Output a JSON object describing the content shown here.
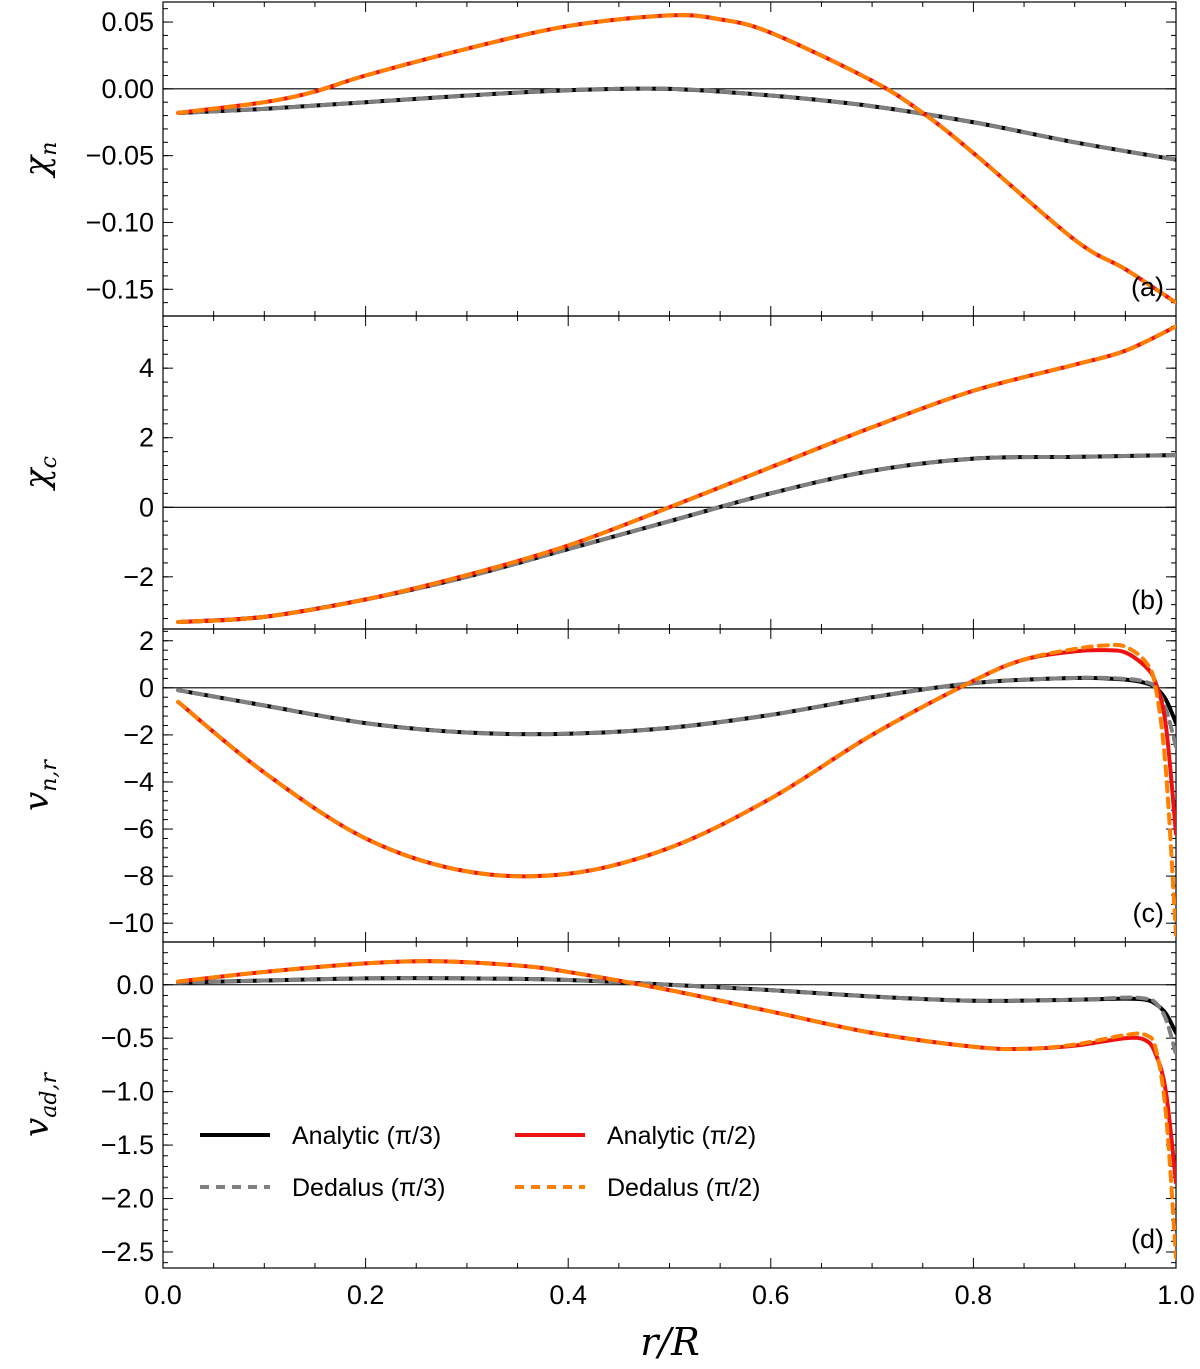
{
  "chart_data": {
    "type": "line",
    "xlabel": "r/R",
    "xlim": [
      0.0,
      1.0
    ],
    "x_ticks": [
      "0.0",
      "0.2",
      "0.4",
      "0.6",
      "0.8",
      "1.0"
    ],
    "series_styles": {
      "analytic_pi3": {
        "name": "Analytic (π/3)",
        "color": "#000000",
        "dashed": false
      },
      "dedalus_pi3": {
        "name": "Dedalus (π/3)",
        "color": "#808080",
        "dashed": true
      },
      "analytic_pi2": {
        "name": "Analytic (π/2)",
        "color": "#ee1111",
        "dashed": false
      },
      "dedalus_pi2": {
        "name": "Dedalus (π/2)",
        "color": "#ff8000",
        "dashed": true
      }
    },
    "legend": {
      "location": "bottom-left of panel (d)",
      "entries": [
        {
          "key": "analytic_pi3",
          "label": "Analytic (π/3)"
        },
        {
          "key": "analytic_pi2",
          "label": "Analytic (π/2)"
        },
        {
          "key": "dedalus_pi3",
          "label": "Dedalus (π/3)"
        },
        {
          "key": "dedalus_pi2",
          "label": "Dedalus (π/2)"
        }
      ]
    },
    "panels": [
      {
        "id": "a",
        "tag": "(a)",
        "ylabel_main": "χ",
        "ylabel_sub": "n",
        "ylim": [
          -0.17,
          0.065
        ],
        "y_ticks": [
          {
            "v": 0.05,
            "label": "0.05"
          },
          {
            "v": 0.0,
            "label": "0.00"
          },
          {
            "v": -0.05,
            "label": "−0.05"
          },
          {
            "v": -0.1,
            "label": "−0.10"
          },
          {
            "v": -0.15,
            "label": "−0.15"
          }
        ],
        "series": [
          {
            "key": "pi3",
            "x": [
              0.015,
              0.1,
              0.2,
              0.3,
              0.4,
              0.5,
              0.6,
              0.7,
              0.8,
              0.9,
              1.0
            ],
            "y": [
              -0.018,
              -0.015,
              -0.01,
              -0.005,
              -0.001,
              0.0,
              -0.005,
              -0.013,
              -0.025,
              -0.04,
              -0.053
            ]
          },
          {
            "key": "pi2",
            "x": [
              0.015,
              0.1,
              0.15,
              0.2,
              0.3,
              0.4,
              0.5,
              0.55,
              0.6,
              0.7,
              0.75,
              0.8,
              0.9,
              0.95,
              1.0
            ],
            "y": [
              -0.018,
              -0.01,
              -0.002,
              0.01,
              0.03,
              0.047,
              0.055,
              0.052,
              0.042,
              0.006,
              -0.018,
              -0.048,
              -0.113,
              -0.135,
              -0.16
            ]
          }
        ]
      },
      {
        "id": "b",
        "tag": "(b)",
        "ylabel_main": "χ",
        "ylabel_sub": "c",
        "ylim": [
          -3.5,
          5.5
        ],
        "y_ticks": [
          {
            "v": 4,
            "label": "4"
          },
          {
            "v": 2,
            "label": "2"
          },
          {
            "v": 0,
            "label": "0"
          },
          {
            "v": -2,
            "label": "−2"
          }
        ],
        "series": [
          {
            "key": "pi3",
            "x": [
              0.015,
              0.1,
              0.2,
              0.3,
              0.4,
              0.5,
              0.6,
              0.7,
              0.8,
              0.9,
              1.0
            ],
            "y": [
              -3.3,
              -3.15,
              -2.65,
              -2.0,
              -1.2,
              -0.4,
              0.4,
              1.05,
              1.4,
              1.45,
              1.5
            ]
          },
          {
            "key": "pi2",
            "x": [
              0.015,
              0.1,
              0.2,
              0.3,
              0.4,
              0.5,
              0.6,
              0.7,
              0.8,
              0.9,
              0.95,
              1.0
            ],
            "y": [
              -3.3,
              -3.15,
              -2.65,
              -1.95,
              -1.1,
              0.0,
              1.15,
              2.3,
              3.35,
              4.1,
              4.5,
              5.2
            ]
          }
        ]
      },
      {
        "id": "c",
        "tag": "(c)",
        "ylabel_main": "v",
        "ylabel_sub": "n,r",
        "ylim": [
          -10.8,
          2.5
        ],
        "y_ticks": [
          {
            "v": 2,
            "label": "2"
          },
          {
            "v": 0,
            "label": "0"
          },
          {
            "v": -2,
            "label": "−2"
          },
          {
            "v": -4,
            "label": "−4"
          },
          {
            "v": -6,
            "label": "−6"
          },
          {
            "v": -8,
            "label": "−8"
          },
          {
            "v": -10,
            "label": "−10"
          }
        ],
        "series": [
          {
            "key": "analytic_pi3",
            "x": [
              0.015,
              0.1,
              0.2,
              0.3,
              0.4,
              0.5,
              0.6,
              0.7,
              0.8,
              0.9,
              0.95,
              0.97,
              0.98,
              0.99,
              1.0
            ],
            "y": [
              -0.1,
              -0.75,
              -1.5,
              -1.9,
              -1.95,
              -1.7,
              -1.15,
              -0.4,
              0.2,
              0.42,
              0.35,
              0.2,
              0.0,
              -0.5,
              -1.5
            ]
          },
          {
            "key": "dedalus_pi3",
            "x": [
              0.015,
              0.1,
              0.2,
              0.3,
              0.4,
              0.5,
              0.6,
              0.7,
              0.8,
              0.9,
              0.95,
              0.97,
              0.98,
              0.99,
              1.0
            ],
            "y": [
              -0.1,
              -0.75,
              -1.5,
              -1.9,
              -1.95,
              -1.7,
              -1.15,
              -0.4,
              0.2,
              0.42,
              0.38,
              0.25,
              0.0,
              -0.9,
              -2.5
            ]
          },
          {
            "key": "analytic_pi2",
            "x": [
              0.015,
              0.1,
              0.2,
              0.3,
              0.4,
              0.5,
              0.6,
              0.7,
              0.8,
              0.85,
              0.9,
              0.93,
              0.95,
              0.97,
              0.98,
              0.99,
              1.0
            ],
            "y": [
              -0.6,
              -3.6,
              -6.4,
              -7.8,
              -7.9,
              -6.8,
              -4.7,
              -2.0,
              0.3,
              1.2,
              1.55,
              1.6,
              1.5,
              0.9,
              0.2,
              -1.6,
              -6.2
            ]
          },
          {
            "key": "dedalus_pi2",
            "x": [
              0.015,
              0.1,
              0.2,
              0.3,
              0.4,
              0.5,
              0.6,
              0.7,
              0.8,
              0.85,
              0.9,
              0.93,
              0.95,
              0.97,
              0.98,
              0.99,
              1.0
            ],
            "y": [
              -0.6,
              -3.6,
              -6.4,
              -7.8,
              -7.9,
              -6.8,
              -4.7,
              -2.0,
              0.3,
              1.2,
              1.65,
              1.8,
              1.75,
              1.1,
              0.0,
              -3.5,
              -10.5
            ]
          }
        ]
      },
      {
        "id": "d",
        "tag": "(d)",
        "ylabel_main": "v",
        "ylabel_sub": "ad,r",
        "ylim": [
          -2.65,
          0.4
        ],
        "y_ticks": [
          {
            "v": 0.0,
            "label": "0.0"
          },
          {
            "v": -0.5,
            "label": "−0.5"
          },
          {
            "v": -1.0,
            "label": "−1.0"
          },
          {
            "v": -1.5,
            "label": "−1.5"
          },
          {
            "v": -2.0,
            "label": "−2.0"
          },
          {
            "v": -2.5,
            "label": "−2.5"
          }
        ],
        "series": [
          {
            "key": "analytic_pi3",
            "x": [
              0.015,
              0.1,
              0.2,
              0.3,
              0.4,
              0.5,
              0.6,
              0.7,
              0.8,
              0.9,
              0.95,
              0.97,
              0.98,
              0.99,
              1.0
            ],
            "y": [
              0.02,
              0.04,
              0.06,
              0.06,
              0.045,
              0.0,
              -0.05,
              -0.11,
              -0.15,
              -0.14,
              -0.13,
              -0.14,
              -0.18,
              -0.27,
              -0.45
            ]
          },
          {
            "key": "dedalus_pi3",
            "x": [
              0.015,
              0.1,
              0.2,
              0.3,
              0.4,
              0.5,
              0.6,
              0.7,
              0.8,
              0.9,
              0.95,
              0.97,
              0.98,
              0.99,
              1.0
            ],
            "y": [
              0.02,
              0.04,
              0.06,
              0.06,
              0.045,
              0.0,
              -0.05,
              -0.11,
              -0.15,
              -0.14,
              -0.12,
              -0.13,
              -0.17,
              -0.32,
              -0.65
            ]
          },
          {
            "key": "analytic_pi2",
            "x": [
              0.015,
              0.1,
              0.2,
              0.27,
              0.35,
              0.4,
              0.5,
              0.6,
              0.7,
              0.8,
              0.85,
              0.9,
              0.95,
              0.97,
              0.98,
              0.99,
              1.0
            ],
            "y": [
              0.03,
              0.12,
              0.2,
              0.22,
              0.18,
              0.12,
              -0.05,
              -0.25,
              -0.45,
              -0.58,
              -0.6,
              -0.57,
              -0.5,
              -0.52,
              -0.65,
              -1.0,
              -1.85
            ]
          },
          {
            "key": "dedalus_pi2",
            "x": [
              0.015,
              0.1,
              0.2,
              0.27,
              0.35,
              0.4,
              0.5,
              0.6,
              0.7,
              0.8,
              0.85,
              0.9,
              0.95,
              0.97,
              0.98,
              0.99,
              1.0
            ],
            "y": [
              0.03,
              0.12,
              0.2,
              0.22,
              0.18,
              0.12,
              -0.05,
              -0.25,
              -0.45,
              -0.58,
              -0.6,
              -0.56,
              -0.47,
              -0.47,
              -0.6,
              -1.2,
              -2.55
            ]
          }
        ]
      }
    ]
  }
}
